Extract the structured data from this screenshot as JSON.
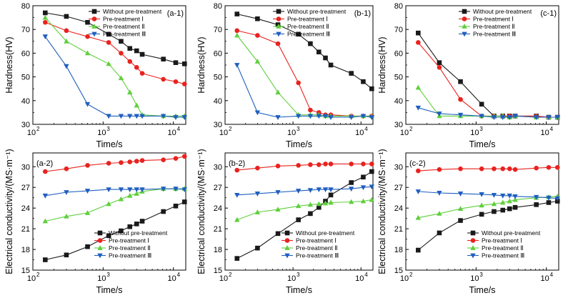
{
  "figure": {
    "colors": {
      "Without pre-treatment": "#1a1a1a",
      "Pre-treatment Ⅰ": "#e8231f",
      "Pre-treatment Ⅱ": "#5fcf3c",
      "Pre-treatment Ⅲ": "#1f5fbf"
    },
    "markers": {
      "Without pre-treatment": "square",
      "Pre-treatment Ⅰ": "circle",
      "Pre-treatment Ⅱ": "triangle-up",
      "Pre-treatment Ⅲ": "triangle-down"
    }
  },
  "chart_data": [
    {
      "id": "a-1",
      "type": "line",
      "label": "(a-1)",
      "xlabel": "Time/s",
      "ylabel": "Hardness(HV)",
      "xscale": "log",
      "xlim": [
        100,
        15000
      ],
      "ylim": [
        30,
        80
      ],
      "yticks": [
        30,
        40,
        50,
        60,
        70,
        80
      ],
      "xticks": [
        {
          "v": 100,
          "t": "10"
        },
        {
          "v": 1000,
          "t": "10"
        },
        {
          "v": 10000,
          "t": "10"
        }
      ],
      "xtick_exp": [
        "2",
        "3",
        "4"
      ],
      "legend_position": "top-right",
      "series": [
        {
          "name": "Without pre-treatment",
          "x": [
            150,
            300,
            600,
            1200,
            1800,
            2400,
            3000,
            3600,
            7200,
            10800,
            14400
          ],
          "y": [
            77,
            75.5,
            73,
            68,
            65,
            62,
            61,
            59.5,
            57.5,
            56,
            55.5
          ]
        },
        {
          "name": "Pre-treatment Ⅰ",
          "x": [
            150,
            300,
            600,
            1200,
            1800,
            2400,
            3000,
            3600,
            7200,
            10800,
            14400
          ],
          "y": [
            73,
            69.5,
            67,
            64.5,
            60,
            56.5,
            54,
            51.5,
            49,
            48,
            47
          ]
        },
        {
          "name": "Pre-treatment Ⅱ",
          "x": [
            150,
            300,
            600,
            1200,
            1800,
            2400,
            3000,
            3600,
            7200,
            10800,
            14400
          ],
          "y": [
            75,
            65,
            60,
            55.5,
            49.5,
            43.5,
            38,
            34,
            33.5,
            33.5,
            33.5
          ]
        },
        {
          "name": "Pre-treatment Ⅲ",
          "x": [
            150,
            300,
            600,
            1200,
            1800,
            2400,
            3000,
            3600,
            7200,
            10800,
            14400
          ],
          "y": [
            67,
            54.5,
            38.5,
            33.5,
            33.5,
            33.5,
            33.5,
            33.5,
            33.5,
            33,
            33
          ]
        }
      ]
    },
    {
      "id": "b-1",
      "type": "line",
      "label": "(b-1)",
      "xlabel": "Time/s",
      "ylabel": "Hardness(HV)",
      "xscale": "log",
      "xlim": [
        100,
        15000
      ],
      "ylim": [
        30,
        80
      ],
      "yticks": [
        30,
        40,
        50,
        60,
        70,
        80
      ],
      "xticks": [
        {
          "v": 100,
          "t": "10"
        },
        {
          "v": 1000,
          "t": "10"
        },
        {
          "v": 10000,
          "t": "10"
        }
      ],
      "xtick_exp": [
        "2",
        "3",
        "4"
      ],
      "legend_position": "top-right",
      "series": [
        {
          "name": "Without pre-treatment",
          "x": [
            150,
            300,
            600,
            1200,
            1800,
            2400,
            3000,
            3600,
            7200,
            10800,
            14400
          ],
          "y": [
            76.5,
            74.5,
            72,
            68,
            64,
            60.5,
            58,
            55,
            51.5,
            48,
            45
          ]
        },
        {
          "name": "Pre-treatment Ⅰ",
          "x": [
            150,
            300,
            600,
            1200,
            1800,
            2400,
            3000,
            3600,
            7200,
            10800,
            14400
          ],
          "y": [
            69.5,
            67.5,
            64,
            47.5,
            36,
            35,
            34,
            34,
            33.5,
            33.5,
            33.5
          ]
        },
        {
          "name": "Pre-treatment Ⅱ",
          "x": [
            150,
            300,
            600,
            1200,
            1800,
            2400,
            3000,
            3600,
            7200,
            10800,
            14400
          ],
          "y": [
            67.5,
            56.5,
            43.5,
            34,
            34,
            34,
            33.5,
            33.5,
            33.5,
            33.5,
            33.5
          ]
        },
        {
          "name": "Pre-treatment Ⅲ",
          "x": [
            150,
            300,
            600,
            1200,
            1800,
            2400,
            3000,
            3600,
            7200,
            10800,
            14400
          ],
          "y": [
            55,
            35,
            33,
            33.5,
            33.5,
            33.5,
            33.5,
            33,
            33,
            33.5,
            33
          ]
        }
      ]
    },
    {
      "id": "c-1",
      "type": "line",
      "label": "(c-1)",
      "xlabel": "Time/s",
      "ylabel": "Hardness(HV)",
      "xscale": "log",
      "xlim": [
        100,
        15000
      ],
      "ylim": [
        30,
        80
      ],
      "yticks": [
        30,
        40,
        50,
        60,
        70,
        80
      ],
      "xticks": [
        {
          "v": 100,
          "t": "10"
        },
        {
          "v": 1000,
          "t": "10"
        },
        {
          "v": 10000,
          "t": "10"
        }
      ],
      "xtick_exp": [
        "2",
        "3",
        "4"
      ],
      "legend_position": "top-right",
      "series": [
        {
          "name": "Without pre-treatment",
          "x": [
            150,
            300,
            600,
            1200,
            1800,
            2400,
            3000,
            3600,
            7200,
            10800,
            14400
          ],
          "y": [
            68.5,
            56,
            48,
            38.5,
            33.5,
            33.5,
            33.5,
            33.5,
            33.5,
            33,
            33
          ]
        },
        {
          "name": "Pre-treatment Ⅰ",
          "x": [
            150,
            300,
            600,
            1200,
            1800,
            2400,
            3000,
            3600,
            7200,
            10800,
            14400
          ],
          "y": [
            64.5,
            54,
            40.5,
            33.5,
            33.5,
            33.5,
            33.5,
            33.5,
            33.5,
            33,
            33
          ]
        },
        {
          "name": "Pre-treatment Ⅱ",
          "x": [
            150,
            300,
            600,
            1200,
            1800,
            2400,
            3000,
            3600,
            7200,
            10800,
            14400
          ],
          "y": [
            45.5,
            33.5,
            33.5,
            33.5,
            33.5,
            33.5,
            33,
            33.5,
            33,
            33,
            33
          ]
        },
        {
          "name": "Pre-treatment Ⅲ",
          "x": [
            150,
            300,
            600,
            1200,
            1800,
            2400,
            3000,
            3600,
            7200,
            10800,
            14400
          ],
          "y": [
            37,
            34.5,
            34,
            33.5,
            33,
            33,
            33,
            33.5,
            33,
            33,
            33
          ]
        }
      ]
    },
    {
      "id": "a-2",
      "type": "line",
      "label": "(a-2)",
      "xlabel": "Time/s",
      "ylabel": "Electrical conductivity/(MS·m⁻¹)",
      "xscale": "log",
      "xlim": [
        100,
        15000
      ],
      "ylim": [
        15,
        32
      ],
      "yticks": [
        15,
        18,
        21,
        24,
        27,
        30
      ],
      "xticks": [
        {
          "v": 100,
          "t": "10"
        },
        {
          "v": 1000,
          "t": "10"
        },
        {
          "v": 10000,
          "t": "10"
        }
      ],
      "xtick_exp": [
        "2",
        "3",
        "4"
      ],
      "legend_position": "bottom-right",
      "series": [
        {
          "name": "Without pre-treatment",
          "x": [
            150,
            300,
            600,
            1200,
            1800,
            2400,
            3000,
            3600,
            7200,
            10800,
            14400
          ],
          "y": [
            16.5,
            17.2,
            18.4,
            20,
            20.7,
            21.3,
            21.7,
            22.1,
            23.5,
            24.3,
            24.9
          ]
        },
        {
          "name": "Pre-treatment Ⅰ",
          "x": [
            150,
            300,
            600,
            1200,
            1800,
            2400,
            3000,
            3600,
            7200,
            10800,
            14400
          ],
          "y": [
            29.3,
            29.7,
            30.2,
            30.5,
            30.6,
            30.7,
            30.8,
            30.9,
            31,
            31.2,
            31.5
          ]
        },
        {
          "name": "Pre-treatment Ⅱ",
          "x": [
            150,
            300,
            600,
            1200,
            1800,
            2400,
            3000,
            3600,
            7200,
            10800,
            14400
          ],
          "y": [
            22.1,
            22.8,
            23.3,
            24.6,
            25.3,
            25.8,
            26.1,
            26.4,
            26.8,
            26.8,
            26.8
          ]
        },
        {
          "name": "Pre-treatment Ⅲ",
          "x": [
            150,
            300,
            600,
            1200,
            1800,
            2400,
            3000,
            3600,
            7200,
            10800,
            14400
          ],
          "y": [
            25.8,
            26.3,
            26.5,
            26.7,
            26.7,
            26.7,
            26.7,
            26.7,
            26.8,
            26.8,
            26.7
          ]
        }
      ]
    },
    {
      "id": "b-2",
      "type": "line",
      "label": "(b-2)",
      "xlabel": "Time/s",
      "ylabel": "Electrical conductivity/(MS·m⁻¹)",
      "xscale": "log",
      "xlim": [
        100,
        15000
      ],
      "ylim": [
        15,
        32
      ],
      "yticks": [
        15,
        18,
        21,
        24,
        27,
        30
      ],
      "xticks": [
        {
          "v": 100,
          "t": "10"
        },
        {
          "v": 1000,
          "t": "10"
        },
        {
          "v": 10000,
          "t": "10"
        }
      ],
      "xtick_exp": [
        "2",
        "3",
        "4"
      ],
      "legend_position": "bottom-right",
      "series": [
        {
          "name": "Without pre-treatment",
          "x": [
            150,
            300,
            600,
            1200,
            1800,
            2400,
            3000,
            3600,
            7200,
            10800,
            14400
          ],
          "y": [
            16.7,
            18.2,
            20.3,
            22.3,
            23.2,
            24.1,
            25,
            25.9,
            27.7,
            28.5,
            29.3
          ]
        },
        {
          "name": "Pre-treatment Ⅰ",
          "x": [
            150,
            300,
            600,
            1200,
            1800,
            2400,
            3000,
            3600,
            7200,
            10800,
            14400
          ],
          "y": [
            29.5,
            29.8,
            30.1,
            30.2,
            30.3,
            30.3,
            30.4,
            30.4,
            30.4,
            30.4,
            30.4
          ]
        },
        {
          "name": "Pre-treatment Ⅱ",
          "x": [
            150,
            300,
            600,
            1200,
            1800,
            2400,
            3000,
            3600,
            7200,
            10800,
            14400
          ],
          "y": [
            22.3,
            23.4,
            23.8,
            24.3,
            24.5,
            24.6,
            24.7,
            24.8,
            24.9,
            25,
            25.2
          ]
        },
        {
          "name": "Pre-treatment Ⅲ",
          "x": [
            150,
            300,
            600,
            1200,
            1800,
            2400,
            3000,
            3600,
            7200,
            10800,
            14400
          ],
          "y": [
            25.9,
            26.1,
            26.3,
            26.5,
            26.6,
            26.7,
            26.7,
            26.7,
            26.8,
            27,
            27.1
          ]
        }
      ]
    },
    {
      "id": "c-2",
      "type": "line",
      "label": "(c-2)",
      "xlabel": "Time/s",
      "ylabel": "Electrical conductivity/(MS·m⁻¹)",
      "xscale": "log",
      "xlim": [
        100,
        15000
      ],
      "ylim": [
        15,
        32
      ],
      "yticks": [
        15,
        18,
        21,
        24,
        27,
        30
      ],
      "xticks": [
        {
          "v": 100,
          "t": "10"
        },
        {
          "v": 1000,
          "t": "10"
        },
        {
          "v": 10000,
          "t": "10"
        }
      ],
      "xtick_exp": [
        "2",
        "3",
        "4"
      ],
      "legend_position": "bottom-right",
      "series": [
        {
          "name": "Without pre-treatment",
          "x": [
            150,
            300,
            600,
            1200,
            1800,
            2400,
            3000,
            3600,
            7200,
            10800,
            14400
          ],
          "y": [
            17.9,
            20.4,
            22.2,
            23.1,
            23.5,
            23.7,
            23.9,
            24.1,
            24.5,
            24.8,
            25
          ]
        },
        {
          "name": "Pre-treatment Ⅰ",
          "x": [
            150,
            300,
            600,
            1200,
            1800,
            2400,
            3000,
            3600,
            7200,
            10800,
            14400
          ],
          "y": [
            29.4,
            29.6,
            29.7,
            29.7,
            29.7,
            29.7,
            29.7,
            29.6,
            29.8,
            29.9,
            29.9
          ]
        },
        {
          "name": "Pre-treatment Ⅱ",
          "x": [
            150,
            300,
            600,
            1200,
            1800,
            2400,
            3000,
            3600,
            7200,
            10800,
            14400
          ],
          "y": [
            22.6,
            23.2,
            23.9,
            24.4,
            24.6,
            24.8,
            25,
            25.2,
            25.5,
            25.6,
            25.7
          ]
        },
        {
          "name": "Pre-treatment Ⅲ",
          "x": [
            150,
            300,
            600,
            1200,
            1800,
            2400,
            3000,
            3600,
            7200,
            10800,
            14400
          ],
          "y": [
            26.4,
            26.2,
            26.1,
            26,
            25.9,
            25.8,
            25.8,
            25.7,
            25.6,
            25.5,
            25.4
          ]
        }
      ]
    }
  ]
}
